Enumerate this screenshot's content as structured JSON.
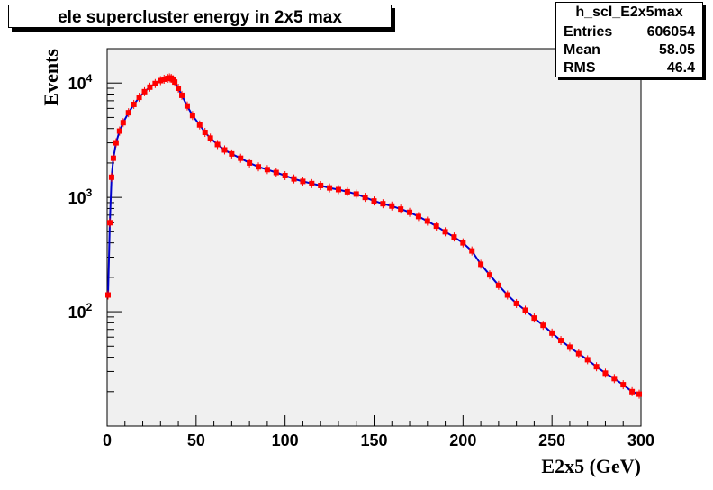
{
  "title": "ele supercluster energy in 2x5 max",
  "stats": {
    "name": "h_scl_E2x5max",
    "entries_label": "Entries",
    "entries_value": "606054",
    "mean_label": "Mean",
    "mean_value": "58.05",
    "rms_label": "RMS",
    "rms_value": "46.4"
  },
  "chart_data": {
    "type": "line",
    "title": "ele supercluster energy in 2x5 max",
    "xlabel": "E2x5 (GeV)",
    "ylabel": "Events",
    "xlim": [
      0,
      300
    ],
    "ylim": [
      10,
      20000
    ],
    "yscale": "log",
    "grid": false,
    "x_ticks": [
      "0",
      "50",
      "100",
      "150",
      "200",
      "250",
      "300"
    ],
    "y_ticks": [
      {
        "base": "10",
        "exp": "2",
        "value": 100
      },
      {
        "base": "10",
        "exp": "3",
        "value": 1000
      },
      {
        "base": "10",
        "exp": "4",
        "value": 10000
      }
    ],
    "colors": {
      "frame_bg": "#f0f0f0",
      "line": "#0000cc",
      "markers": "#ff0000"
    },
    "series": [
      {
        "x": [
          0.5,
          1.5,
          2.5,
          3.5,
          5,
          7,
          9,
          12,
          15,
          18,
          21,
          24,
          27,
          30,
          32,
          34,
          35,
          36,
          37,
          38,
          40,
          42,
          45,
          48,
          52,
          55,
          58,
          62,
          66,
          70,
          75,
          80,
          85,
          90,
          95,
          100,
          105,
          110,
          115,
          120,
          125,
          130,
          135,
          140,
          145,
          150,
          155,
          160,
          165,
          170,
          175,
          180,
          185,
          190,
          195,
          200,
          205,
          210,
          215,
          220,
          225,
          230,
          235,
          240,
          245,
          250,
          255,
          260,
          265,
          270,
          275,
          280,
          285,
          290,
          295,
          299
        ],
        "y": [
          140,
          600,
          1500,
          2200,
          3000,
          3800,
          4500,
          5500,
          6500,
          7500,
          8400,
          9200,
          9900,
          10500,
          10800,
          11000,
          11100,
          11000,
          10700,
          10200,
          9000,
          7800,
          6300,
          5200,
          4300,
          3700,
          3300,
          2900,
          2600,
          2400,
          2200,
          2000,
          1850,
          1750,
          1650,
          1550,
          1450,
          1380,
          1320,
          1270,
          1210,
          1170,
          1120,
          1070,
          1000,
          930,
          880,
          840,
          790,
          740,
          680,
          620,
          560,
          500,
          450,
          400,
          340,
          260,
          210,
          170,
          140,
          118,
          103,
          88,
          76,
          65,
          56,
          49,
          43,
          38,
          33,
          29,
          26,
          23,
          20,
          19
        ]
      }
    ]
  }
}
